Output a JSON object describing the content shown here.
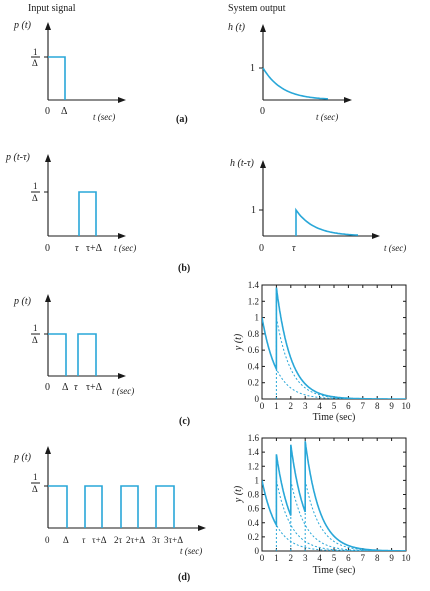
{
  "headers": {
    "input": "Input signal",
    "output": "System output"
  },
  "panel_a": {
    "input_ylabel": "p (t)",
    "one_over_delta": "1",
    "delta_den": "Δ",
    "zero": "0",
    "delta": "Δ",
    "taxis": "t (sec)",
    "output_ylabel": "h (t)",
    "one": "1",
    "out_zero": "0",
    "out_taxis": "t (sec)",
    "caption": "(a)"
  },
  "panel_b": {
    "input_ylabel": "p (t-τ)",
    "one_over_delta": "1",
    "delta_den": "Δ",
    "zero": "0",
    "tau": "τ",
    "tau_plus_delta": "τ+Δ",
    "taxis": "t (sec)",
    "output_ylabel": "h (t-τ)",
    "one": "1",
    "out_zero": "0",
    "out_tau": "τ",
    "out_taxis": "t (sec)",
    "caption": "(b)"
  },
  "panel_c": {
    "input_ylabel": "p (t)",
    "one_over_delta": "1",
    "delta_den": "Δ",
    "ticks": [
      "0",
      "Δ",
      "τ",
      "τ+Δ"
    ],
    "taxis": "t (sec)",
    "caption": "(c)"
  },
  "panel_d": {
    "input_ylabel": "p (t)",
    "one_over_delta": "1",
    "delta_den": "Δ",
    "ticks": [
      "0",
      "Δ",
      "τ",
      "τ+Δ",
      "2τ",
      "2τ+Δ",
      "3τ",
      "3τ+Δ"
    ],
    "taxis": "t (sec)",
    "caption": "(d)"
  },
  "chart_data": [
    {
      "type": "line",
      "xlabel": "Time (sec)",
      "ylabel": "y (t)",
      "xlim": [
        0,
        10
      ],
      "ylim": [
        0,
        1.4
      ],
      "xticks": [
        0,
        1,
        2,
        3,
        4,
        5,
        6,
        7,
        8,
        9,
        10
      ],
      "yticks": [
        0,
        0.2,
        0.4,
        0.6,
        0.8,
        1,
        1.2,
        1.4
      ],
      "ytick_labels": [
        "0",
        "0.2",
        "0.4",
        "0.6",
        "0.8",
        "1",
        "1.2",
        "1.4"
      ],
      "pulse_times": [
        0,
        1
      ],
      "decay_rate": 1.0,
      "grid": false
    },
    {
      "type": "line",
      "xlabel": "Time (sec)",
      "ylabel": "y (t)",
      "xlim": [
        0,
        10
      ],
      "ylim": [
        0,
        1.6
      ],
      "xticks": [
        0,
        1,
        2,
        3,
        4,
        5,
        6,
        7,
        8,
        9,
        10
      ],
      "yticks": [
        0,
        0.2,
        0.4,
        0.6,
        0.8,
        1,
        1.2,
        1.4,
        1.6
      ],
      "ytick_labels": [
        "0",
        "0.2",
        "0.4",
        "0.6",
        "0.8",
        "1",
        "1.2",
        "1.4",
        "1.6"
      ],
      "pulse_times": [
        0,
        1,
        2,
        3
      ],
      "decay_rate": 1.0,
      "grid": false
    }
  ]
}
